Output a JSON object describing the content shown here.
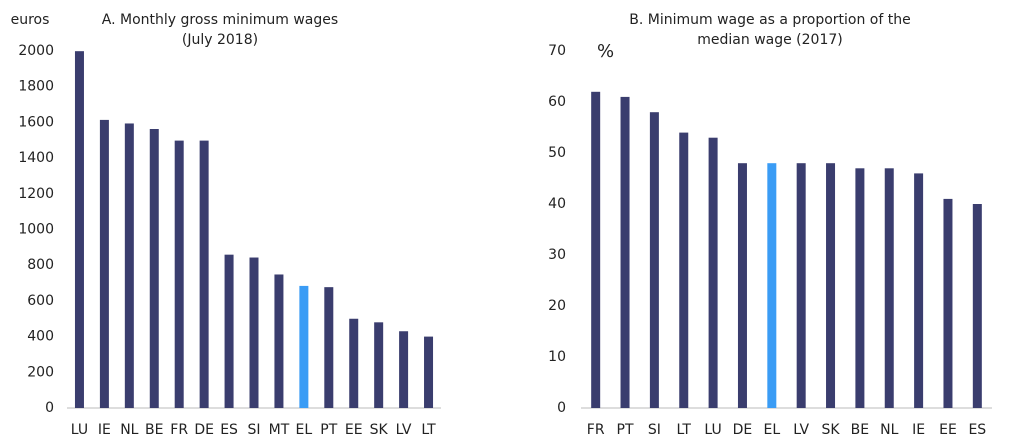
{
  "chart_data": [
    {
      "type": "bar",
      "title": [
        "A. Monthly gross minimum wages",
        "(July 2018)"
      ],
      "y_label": "euros",
      "categories": [
        "LU",
        "IE",
        "NL",
        "BE",
        "FR",
        "DE",
        "ES",
        "SI",
        "MT",
        "EL",
        "PT",
        "EE",
        "SK",
        "LV",
        "LT"
      ],
      "values": [
        1999,
        1614,
        1594,
        1563,
        1498,
        1498,
        859,
        843,
        748,
        684,
        677,
        500,
        480,
        430,
        400
      ],
      "colors": [
        "#3a3d6e",
        "#3a3d6e",
        "#3a3d6e",
        "#3a3d6e",
        "#3a3d6e",
        "#3a3d6e",
        "#3a3d6e",
        "#3a3d6e",
        "#3a3d6e",
        "#3a9cf5",
        "#3a3d6e",
        "#3a3d6e",
        "#3a3d6e",
        "#3a3d6e",
        "#3a3d6e"
      ],
      "ylim": [
        0,
        2000
      ],
      "yticks": [
        0,
        200,
        400,
        600,
        800,
        1000,
        1200,
        1400,
        1600,
        1800,
        2000
      ],
      "grid": false
    },
    {
      "type": "bar",
      "title": [
        "B. Minimum wage as a proportion of the",
        "median wage (2017)"
      ],
      "y_label": "%",
      "categories": [
        "FR",
        "PT",
        "SI",
        "LT",
        "LU",
        "DE",
        "EL",
        "LV",
        "SK",
        "BE",
        "NL",
        "IE",
        "EE",
        "ES"
      ],
      "values": [
        62,
        61,
        58,
        54,
        53,
        48,
        48,
        48,
        48,
        47,
        47,
        46,
        41,
        40
      ],
      "colors": [
        "#3a3d6e",
        "#3a3d6e",
        "#3a3d6e",
        "#3a3d6e",
        "#3a3d6e",
        "#3a3d6e",
        "#3a9cf5",
        "#3a3d6e",
        "#3a3d6e",
        "#3a3d6e",
        "#3a3d6e",
        "#3a3d6e",
        "#3a3d6e",
        "#3a3d6e"
      ],
      "ylim": [
        0,
        70
      ],
      "yticks": [
        0,
        10,
        20,
        30,
        40,
        50,
        60,
        70
      ],
      "grid": false
    }
  ]
}
